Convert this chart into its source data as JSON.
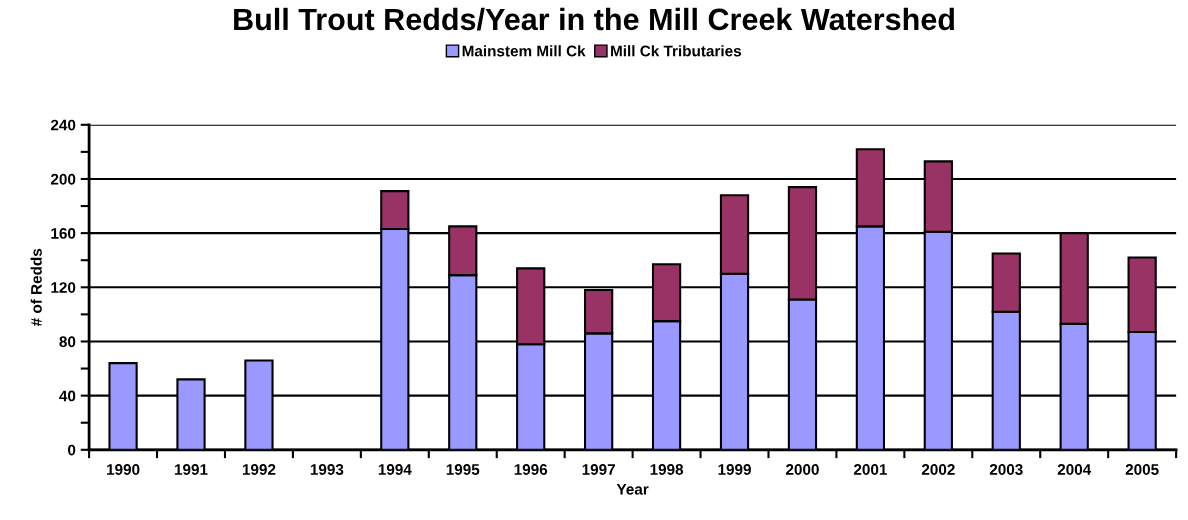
{
  "chart_data": {
    "type": "bar",
    "title": "Bull Trout Redds/Year in the Mill Creek Watershed",
    "xlabel": "Year",
    "ylabel": "# of Redds",
    "categories": [
      "1990",
      "1991",
      "1992",
      "1993",
      "1994",
      "1995",
      "1996",
      "1997",
      "1998",
      "1999",
      "2000",
      "2001",
      "2002",
      "2003",
      "2004",
      "2005"
    ],
    "stacked": true,
    "series": [
      {
        "name": "Mainstem Mill Ck",
        "color": "#9999ff",
        "values": [
          64,
          52,
          66,
          null,
          163,
          129,
          78,
          86,
          95,
          130,
          111,
          165,
          161,
          102,
          93,
          87
        ]
      },
      {
        "name": "Mill Ck Tributaries",
        "color": "#993366",
        "values": [
          null,
          null,
          null,
          null,
          28,
          36,
          56,
          32,
          42,
          58,
          83,
          57,
          52,
          43,
          67,
          55
        ]
      }
    ],
    "ylim": [
      0,
      240
    ],
    "yticks": [
      0,
      {
        "value": 20,
        "label": null
      },
      40,
      {
        "value": 60,
        "label": null
      },
      80,
      {
        "value": 100,
        "label": null
      },
      120,
      {
        "value": 140,
        "label": null
      },
      160,
      {
        "value": 180,
        "label": null
      },
      200,
      {
        "value": 220,
        "label": null
      },
      240
    ],
    "grid": "y",
    "legend": "top"
  }
}
